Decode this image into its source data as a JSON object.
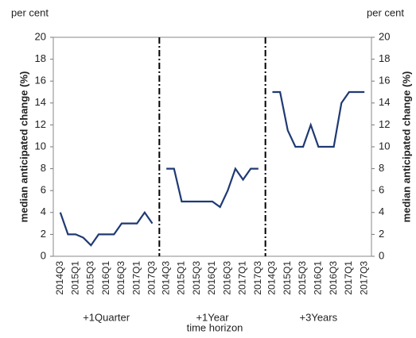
{
  "chart_data": {
    "type": "line",
    "y_unit_left": "per cent",
    "y_unit_right": "per cent",
    "y_label": "median anticipated change (%)",
    "y2_label": "median anticipated change (%)",
    "x_label": "time horizon",
    "ylim": [
      0,
      20
    ],
    "yticks": [
      0,
      2,
      4,
      6,
      8,
      10,
      12,
      14,
      16,
      18,
      20
    ],
    "y2lim": [
      0,
      20
    ],
    "y2ticks": [
      0,
      2,
      4,
      6,
      8,
      10,
      12,
      14,
      16,
      18,
      20
    ],
    "color": "#1f3a73",
    "panels": [
      {
        "label": "+1Quarter",
        "categories": [
          "2014Q3",
          null,
          "2015Q1",
          null,
          "2015Q3",
          null,
          "2016Q1",
          null,
          "2016Q3",
          null,
          "2017Q1",
          null,
          "2017Q3"
        ],
        "values": [
          4,
          2,
          2,
          1.7,
          1,
          2,
          2,
          2,
          3,
          3,
          3,
          4,
          3
        ]
      },
      {
        "label": "+1Year",
        "categories": [
          "2014Q3",
          null,
          "2015Q1",
          null,
          "2015Q3",
          null,
          "2016Q1",
          null,
          "2016Q3",
          null,
          "2017Q1",
          null,
          "2017Q3"
        ],
        "values": [
          8,
          8,
          5,
          5,
          5,
          5,
          5,
          4.5,
          6,
          8,
          7,
          8,
          8
        ]
      },
      {
        "label": "+3Years",
        "categories": [
          "2014Q3",
          null,
          "2015Q1",
          null,
          "2015Q3",
          null,
          "2016Q1",
          null,
          "2016Q3",
          null,
          "2017Q1",
          null,
          "2017Q3"
        ],
        "values": [
          15,
          15,
          11.5,
          10,
          10,
          12,
          10,
          10,
          10,
          14,
          15,
          15,
          15
        ]
      }
    ]
  }
}
